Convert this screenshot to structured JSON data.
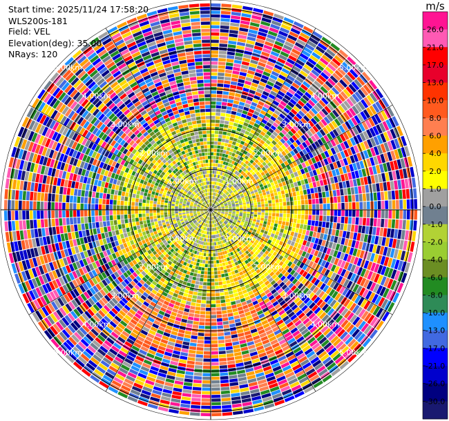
{
  "header": {
    "start_time": "Start time: 2025/11/24 17:58:20",
    "site": "WLS200s-181",
    "field": "Field: VEL",
    "elevation": "Elevation(deg): 35.00",
    "nrays": "NRays: 120"
  },
  "chart_data": {
    "type": "heatmap",
    "projection": "polar-ppi",
    "rays": 120,
    "range_ring_labels": [
      "1.00km",
      "2.00km",
      "3.00km",
      "4.00km",
      "5.00km"
    ],
    "ring_ranges_km": [
      1,
      2,
      3,
      4,
      5
    ],
    "max_range_km": 5.2,
    "legend_position": "right",
    "colorbar": {
      "unit": "m/s",
      "ticks": [
        "26.0",
        "21.0",
        "17.0",
        "13.0",
        "10.0",
        "8.0",
        "6.0",
        "4.0",
        "2.0",
        "1.0",
        "0.0",
        "-1.0",
        "-2.0",
        "-4.0",
        "-6.0",
        "-8.0",
        "-10.0",
        "-13.0",
        "-17.0",
        "-21.0",
        "-26.0",
        "-30.0"
      ],
      "colors": [
        "#ff1493",
        "#ff5ab4",
        "#ff0000",
        "#e8002b",
        "#ff3300",
        "#ff5a1e",
        "#ff7f50",
        "#ffa000",
        "#ffd700",
        "#ffff00",
        "#a0a0a0",
        "#708090",
        "#b2d235",
        "#9acd32",
        "#6b8e23",
        "#228b22",
        "#2e8b57",
        "#1e90ff",
        "#4169e1",
        "#0000ff",
        "#0000cd",
        "#000080",
        "#191970"
      ]
    },
    "near_field_colors": [
      "#ffff00",
      "#ffd700",
      "#9acd32",
      "#b2d235",
      "#708090",
      "#a0a0a0"
    ],
    "mid_field_colors": [
      "#9acd32",
      "#6b8e23",
      "#228b22",
      "#ffff00",
      "#ffd700",
      "#ffa000",
      "#a0a0a0"
    ]
  }
}
